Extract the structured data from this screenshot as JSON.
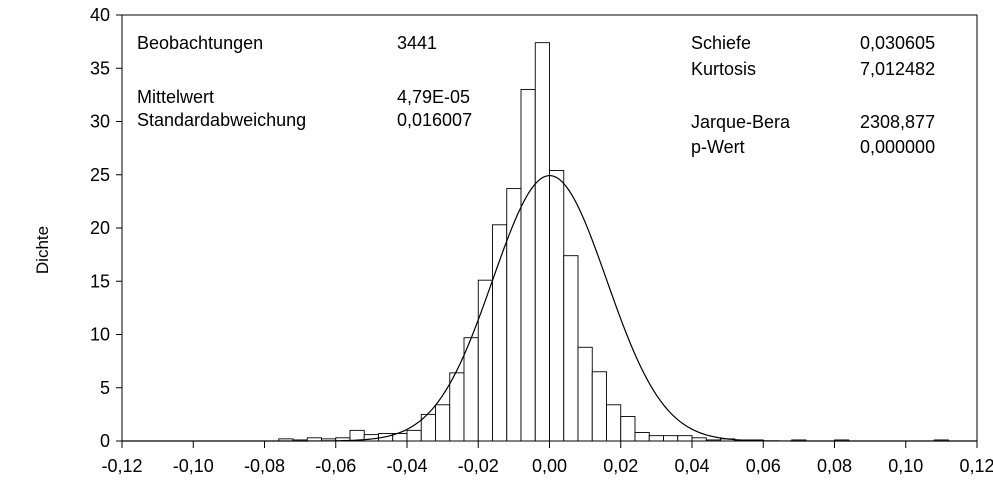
{
  "chart_data": {
    "type": "bar",
    "ylabel": "Dichte",
    "xlim": [
      -0.12,
      0.12
    ],
    "ylim": [
      0,
      40
    ],
    "x_tick_labels": [
      "-0,12",
      "-0,10",
      "-0,08",
      "-0,06",
      "-0,04",
      "-0,02",
      "0,00",
      "0,02",
      "0,04",
      "0,06",
      "0,08",
      "0,10",
      "0,12"
    ],
    "y_tick_labels": [
      "0",
      "5",
      "10",
      "15",
      "20",
      "25",
      "30",
      "35",
      "40"
    ],
    "bin_width": 0.004,
    "bins": [
      {
        "x0": -0.076,
        "density": 0.2
      },
      {
        "x0": -0.072,
        "density": 0.1
      },
      {
        "x0": -0.068,
        "density": 0.3
      },
      {
        "x0": -0.064,
        "density": 0.2
      },
      {
        "x0": -0.06,
        "density": 0.3
      },
      {
        "x0": -0.056,
        "density": 1.0
      },
      {
        "x0": -0.052,
        "density": 0.6
      },
      {
        "x0": -0.048,
        "density": 0.7
      },
      {
        "x0": -0.044,
        "density": 0.7
      },
      {
        "x0": -0.04,
        "density": 1.0
      },
      {
        "x0": -0.036,
        "density": 2.5
      },
      {
        "x0": -0.032,
        "density": 3.4
      },
      {
        "x0": -0.028,
        "density": 6.4
      },
      {
        "x0": -0.024,
        "density": 9.7
      },
      {
        "x0": -0.02,
        "density": 15.1
      },
      {
        "x0": -0.016,
        "density": 20.3
      },
      {
        "x0": -0.012,
        "density": 23.7
      },
      {
        "x0": -0.008,
        "density": 33.0
      },
      {
        "x0": -0.004,
        "density": 37.4
      },
      {
        "x0": 0.0,
        "density": 25.4
      },
      {
        "x0": 0.004,
        "density": 17.4
      },
      {
        "x0": 0.008,
        "density": 8.8
      },
      {
        "x0": 0.012,
        "density": 6.5
      },
      {
        "x0": 0.016,
        "density": 3.4
      },
      {
        "x0": 0.02,
        "density": 2.3
      },
      {
        "x0": 0.024,
        "density": 0.8
      },
      {
        "x0": 0.028,
        "density": 0.5
      },
      {
        "x0": 0.032,
        "density": 0.5
      },
      {
        "x0": 0.036,
        "density": 0.5
      },
      {
        "x0": 0.04,
        "density": 0.3
      },
      {
        "x0": 0.044,
        "density": 0.1
      },
      {
        "x0": 0.048,
        "density": 0.2
      },
      {
        "x0": 0.052,
        "density": 0.1
      },
      {
        "x0": 0.056,
        "density": 0.1
      },
      {
        "x0": 0.068,
        "density": 0.1
      },
      {
        "x0": 0.08,
        "density": 0.1
      },
      {
        "x0": 0.108,
        "density": 0.1
      }
    ],
    "normal_curve": {
      "mean": 4.79e-05,
      "sd": 0.016007
    }
  },
  "stats": {
    "left": [
      {
        "label": "Beobachtungen",
        "value": "3441"
      },
      {
        "label": "Mittelwert",
        "value": "4,79E-05"
      },
      {
        "label": "Standardabweichung",
        "value": "0,016007"
      }
    ],
    "right": [
      {
        "label": "Schiefe",
        "value": "0,030605"
      },
      {
        "label": "Kurtosis",
        "value": "7,012482"
      },
      {
        "label": "Jarque-Bera",
        "value": "2308,877"
      },
      {
        "label": "p-Wert",
        "value": "0,000000"
      }
    ]
  }
}
